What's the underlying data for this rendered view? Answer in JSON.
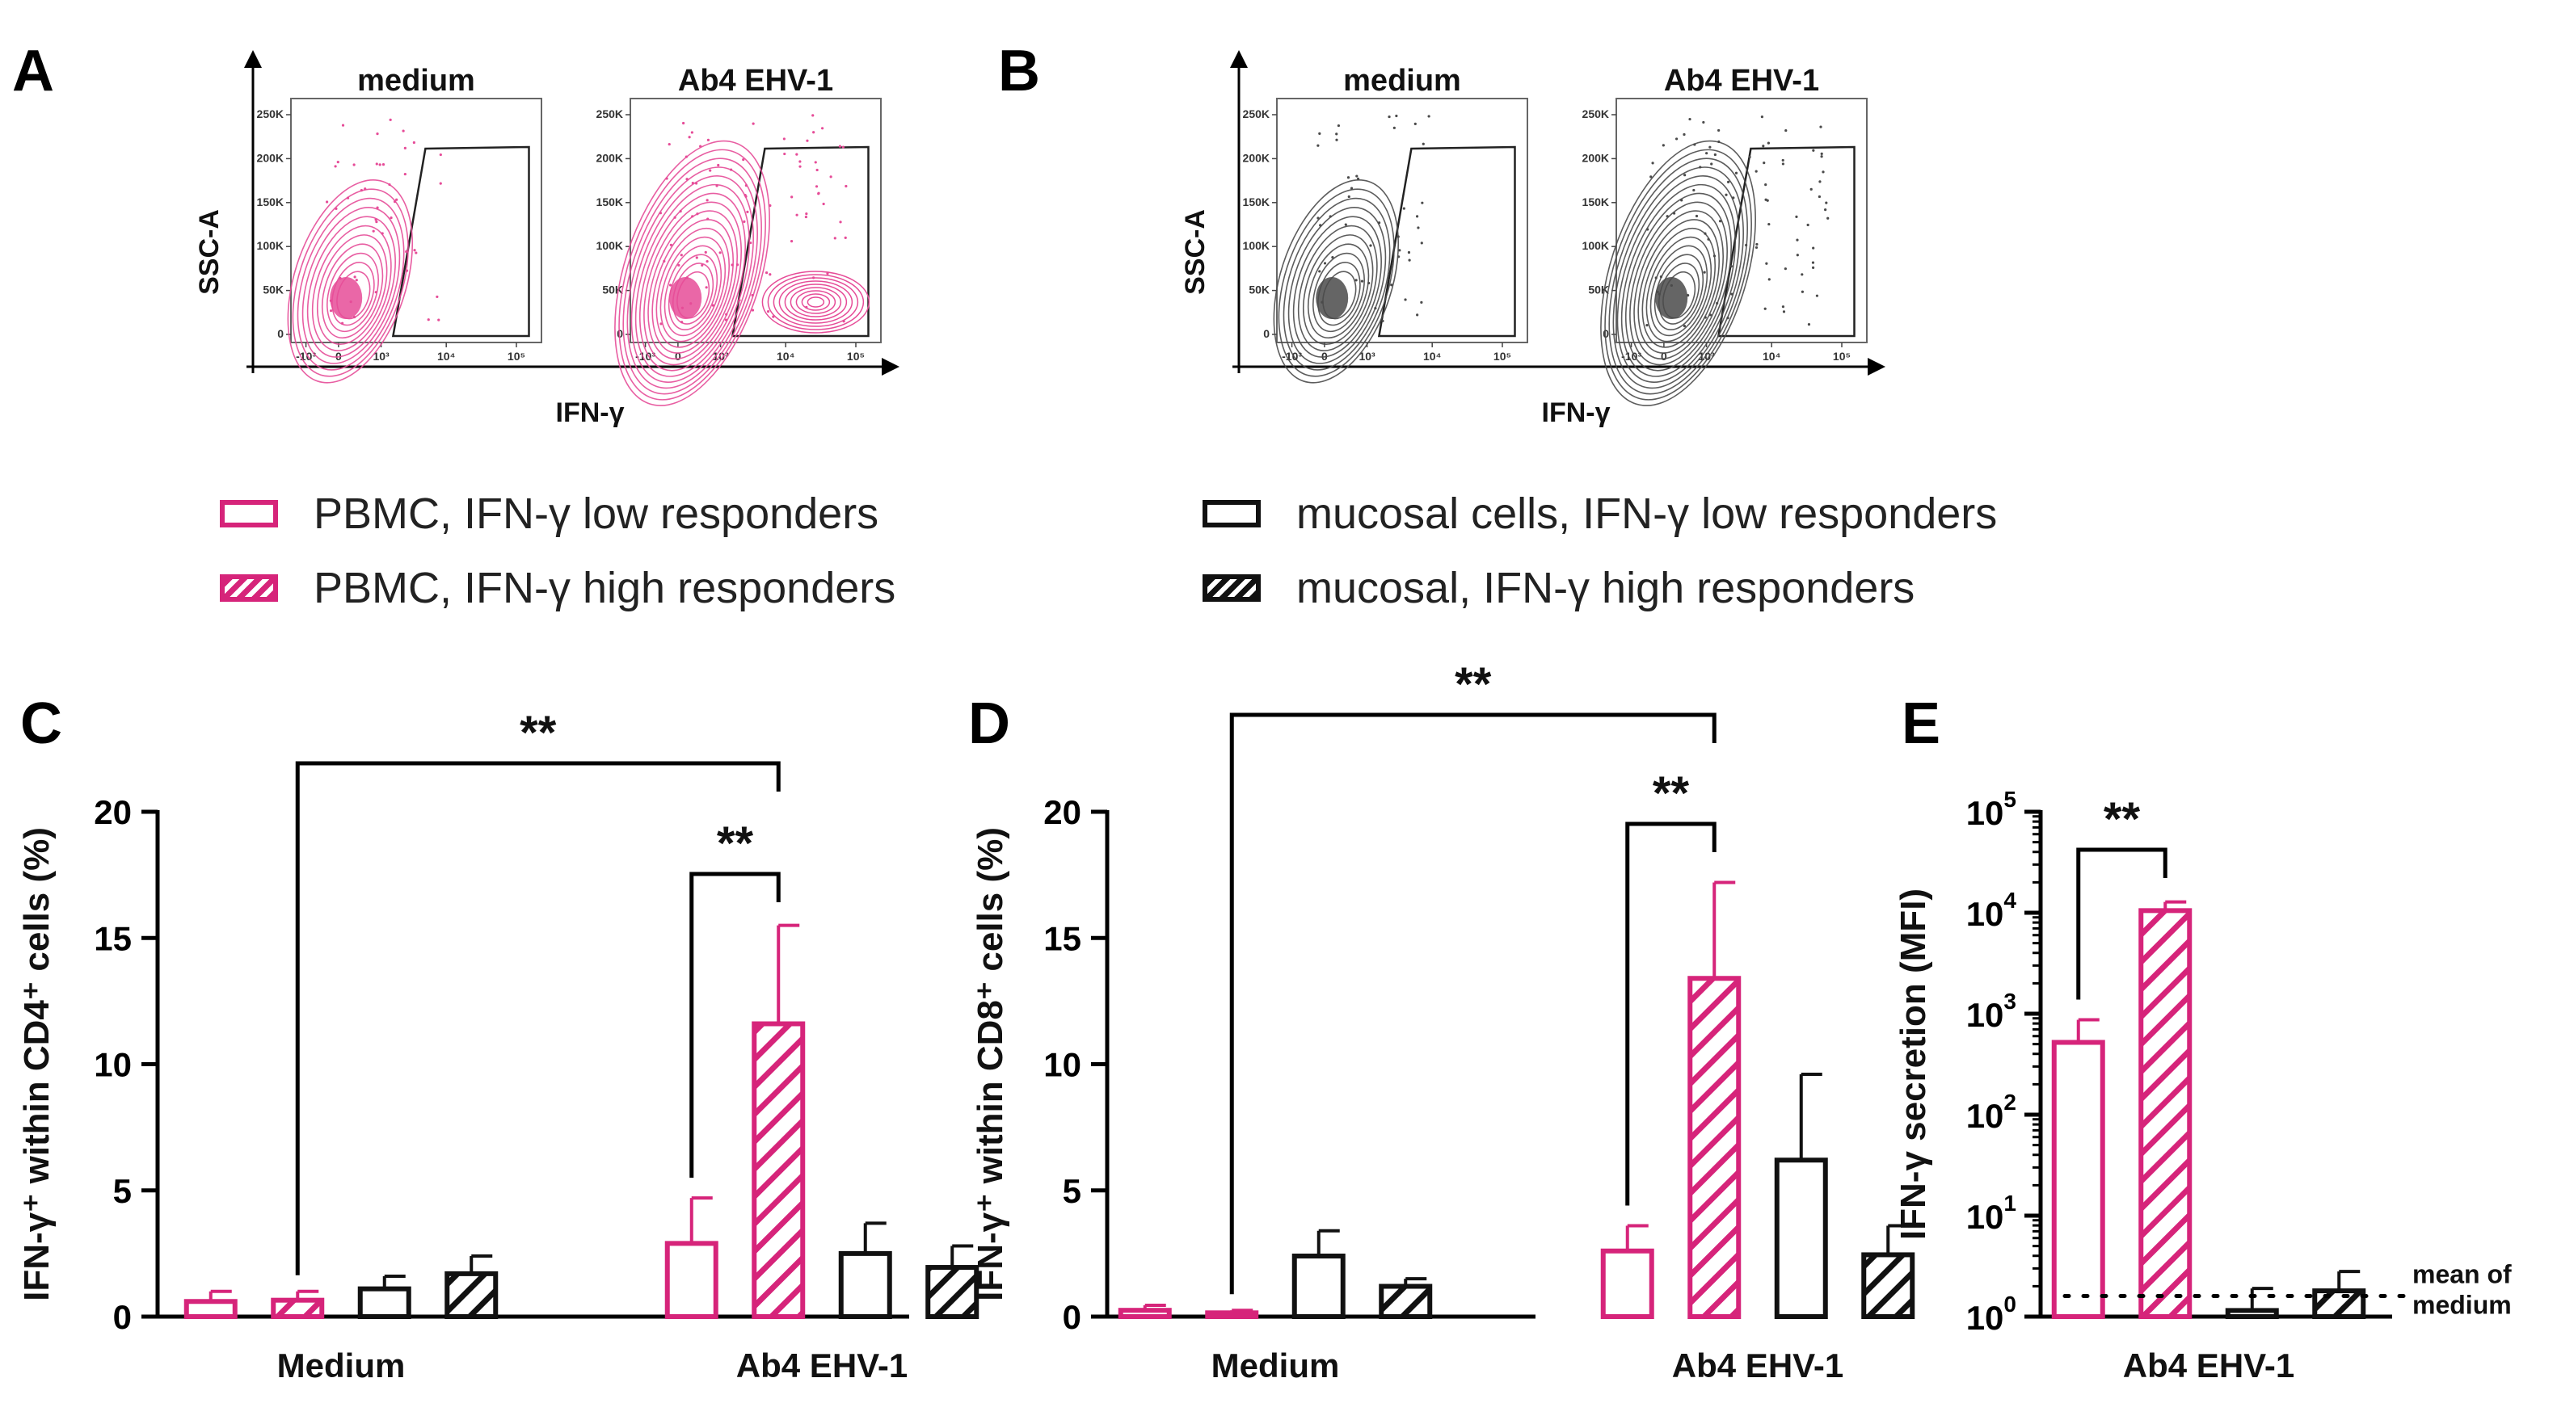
{
  "colors": {
    "pbmc": "#d6247a",
    "mucosal": "#111111",
    "contour_pbmc": "#e64c98",
    "contour_mucosal": "#4a4a4a"
  },
  "flow": {
    "A": {
      "letter": "A",
      "color": "pbmc",
      "plot_titles": [
        "medium",
        "Ab4 EHV-1"
      ],
      "y_label": "SSC-A",
      "x_label": "IFN-γ",
      "y_ticks": [
        "250K",
        "200K",
        "150K",
        "100K",
        "50K",
        "0"
      ],
      "x_ticks": [
        "-10³",
        "0",
        "10³",
        "10⁴",
        "10⁵"
      ]
    },
    "B": {
      "letter": "B",
      "color": "mucosal",
      "plot_titles": [
        "medium",
        "Ab4 EHV-1"
      ],
      "y_label": "SSC-A",
      "x_label": "IFN-γ",
      "y_ticks": [
        "250K",
        "200K",
        "150K",
        "100K",
        "50K",
        "0"
      ],
      "x_ticks": [
        "-10³",
        "0",
        "10³",
        "10⁴",
        "10⁵"
      ]
    }
  },
  "legend": [
    {
      "label": "PBMC, IFN-γ low responders",
      "color": "pbmc",
      "pattern": "open"
    },
    {
      "label": "PBMC, IFN-γ high responders",
      "color": "pbmc",
      "pattern": "hatched"
    },
    {
      "label": "mucosal cells, IFN-γ low responders",
      "color": "mucosal",
      "pattern": "open"
    },
    {
      "label": "mucosal, IFN-γ high responders",
      "color": "mucosal",
      "pattern": "hatched"
    }
  ],
  "chart_data": [
    {
      "panel": "C",
      "type": "bar",
      "ylabel": "IFN-γ⁺ within CD4⁺ cells (%)",
      "categories": [
        "Medium",
        "Ab4 EHV-1"
      ],
      "ylim": [
        0,
        20
      ],
      "yticks": [
        0,
        5,
        10,
        15,
        20
      ],
      "scale": "linear",
      "series": [
        {
          "name": "PBMC, IFN-γ low responders",
          "values": [
            0.6,
            2.9
          ],
          "errors": [
            0.4,
            1.8
          ]
        },
        {
          "name": "PBMC, IFN-γ high responders",
          "values": [
            0.65,
            11.6
          ],
          "errors": [
            0.35,
            3.9
          ]
        },
        {
          "name": "mucosal cells, IFN-γ low responders",
          "values": [
            1.1,
            2.5
          ],
          "errors": [
            0.5,
            1.2
          ]
        },
        {
          "name": "mucosal, IFN-γ high responders",
          "values": [
            1.7,
            1.95
          ],
          "errors": [
            0.7,
            0.85
          ]
        }
      ],
      "significance": [
        {
          "label": "**",
          "from": {
            "category": 0,
            "series": 1
          },
          "to": {
            "category": 1,
            "series": 1
          }
        },
        {
          "label": "**",
          "from": {
            "category": 1,
            "series": 0
          },
          "to": {
            "category": 1,
            "series": 1
          }
        }
      ]
    },
    {
      "panel": "D",
      "type": "bar",
      "ylabel": "IFN-γ⁺ within CD8⁺ cells (%)",
      "categories": [
        "Medium",
        "Ab4 EHV-1"
      ],
      "ylim": [
        0,
        20
      ],
      "yticks": [
        0,
        5,
        10,
        15,
        20
      ],
      "scale": "linear",
      "series": [
        {
          "name": "PBMC, IFN-γ low responders",
          "values": [
            0.25,
            2.6
          ],
          "errors": [
            0.2,
            1.0
          ]
        },
        {
          "name": "PBMC, IFN-γ high responders",
          "values": [
            0.15,
            13.4
          ],
          "errors": [
            0.1,
            3.8
          ]
        },
        {
          "name": "mucosal cells, IFN-γ low responders",
          "values": [
            2.4,
            6.2
          ],
          "errors": [
            1.0,
            3.4
          ]
        },
        {
          "name": "mucosal, IFN-γ high responders",
          "values": [
            1.2,
            2.45
          ],
          "errors": [
            0.3,
            1.15
          ]
        }
      ],
      "significance": [
        {
          "label": "**",
          "from": {
            "category": 0,
            "series": 1
          },
          "to": {
            "category": 1,
            "series": 1
          }
        },
        {
          "label": "**",
          "from": {
            "category": 1,
            "series": 0
          },
          "to": {
            "category": 1,
            "series": 1
          }
        }
      ]
    },
    {
      "panel": "E",
      "type": "bar",
      "ylabel": "IFN-γ secretion (MFI)",
      "categories": [
        "Ab4 EHV-1"
      ],
      "ylim": [
        1,
        100000
      ],
      "scale": "log",
      "ytick_labels": [
        {
          "base": "10",
          "exp": "0",
          "value": 1
        },
        {
          "base": "10",
          "exp": "1",
          "value": 10
        },
        {
          "base": "10",
          "exp": "2",
          "value": 100
        },
        {
          "base": "10",
          "exp": "3",
          "value": 1000
        },
        {
          "base": "10",
          "exp": "4",
          "value": 10000
        },
        {
          "base": "10",
          "exp": "5",
          "value": 100000
        }
      ],
      "series": [
        {
          "name": "PBMC, IFN-γ low responders",
          "values": [
            520
          ],
          "errors": [
            350
          ]
        },
        {
          "name": "PBMC, IFN-γ high responders",
          "values": [
            10500
          ],
          "errors": [
            2300
          ]
        },
        {
          "name": "mucosal cells, IFN-γ low responders",
          "values": [
            1.15
          ],
          "errors": [
            0.75
          ]
        },
        {
          "name": "mucosal, IFN-γ high responders",
          "values": [
            1.8
          ],
          "errors": [
            1.0
          ]
        }
      ],
      "reference_line": {
        "value": 1.6,
        "label_lines": [
          "mean of",
          "medium"
        ]
      },
      "significance": [
        {
          "label": "**",
          "from": {
            "category": 0,
            "series": 0
          },
          "to": {
            "category": 0,
            "series": 1
          }
        }
      ]
    }
  ]
}
